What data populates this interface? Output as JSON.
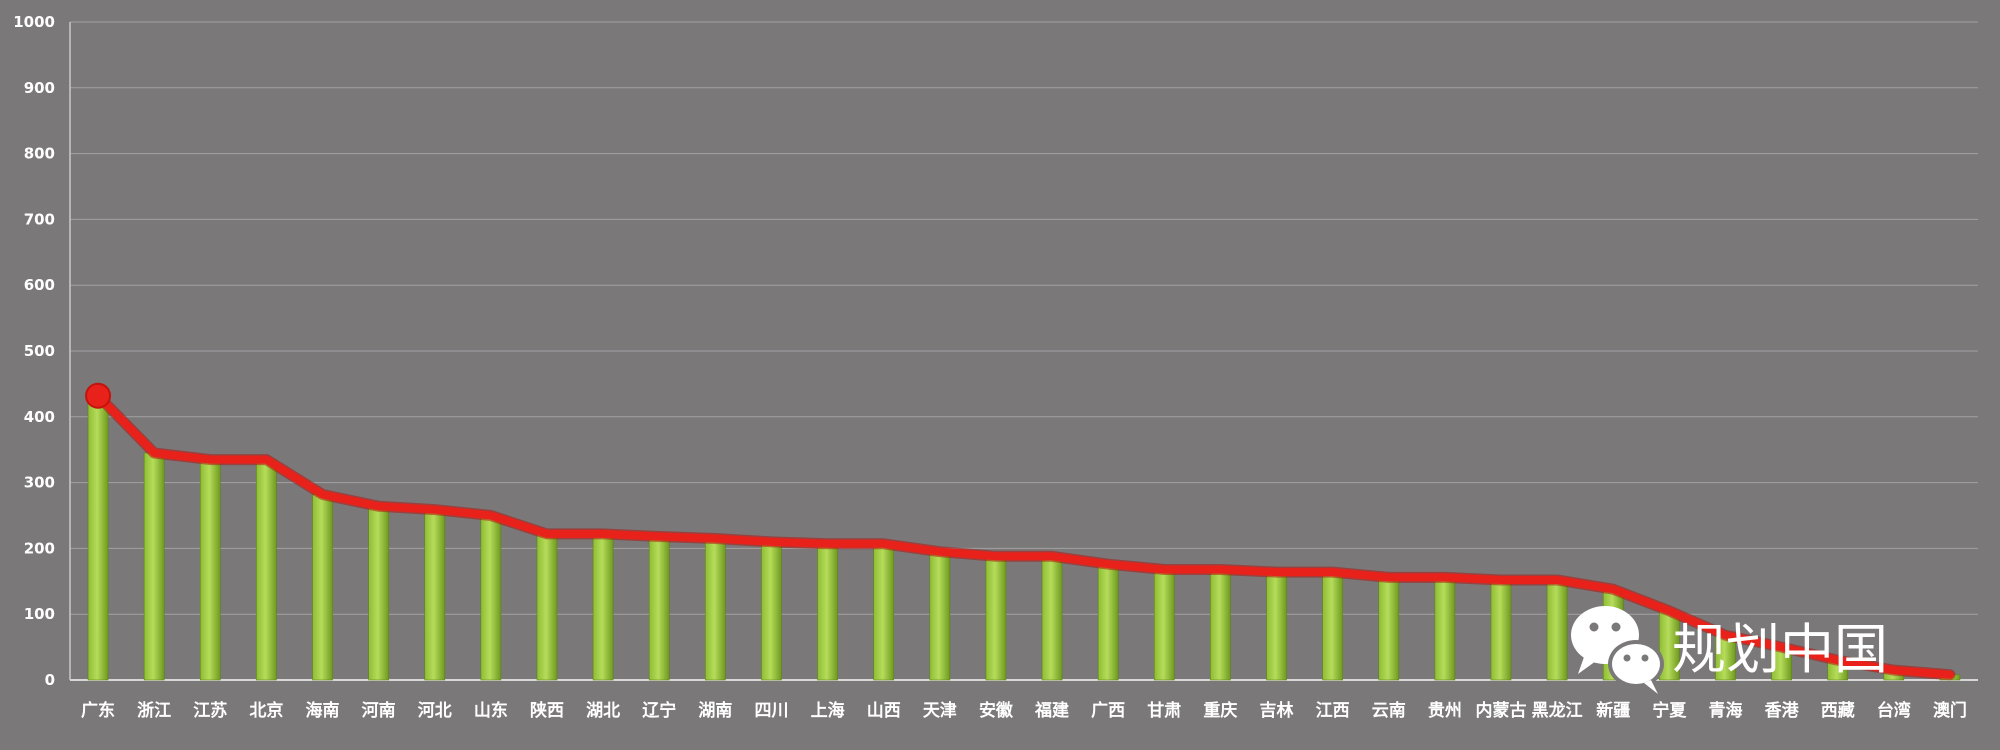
{
  "chart_data": {
    "type": "bar",
    "categories": [
      "广东",
      "浙江",
      "江苏",
      "北京",
      "海南",
      "河南",
      "河北",
      "山东",
      "陕西",
      "湖北",
      "辽宁",
      "湖南",
      "四川",
      "上海",
      "山西",
      "天津",
      "安徽",
      "福建",
      "广西",
      "甘肃",
      "重庆",
      "吉林",
      "江西",
      "云南",
      "贵州",
      "内蒙古",
      "黑龙江",
      "新疆",
      "宁夏",
      "青海",
      "香港",
      "西藏",
      "台湾",
      "澳门"
    ],
    "series": [
      {
        "chart_type": "bar",
        "values": [
          432,
          345,
          335,
          335,
          282,
          264,
          259,
          250,
          222,
          222,
          218,
          215,
          210,
          207,
          207,
          195,
          188,
          188,
          176,
          168,
          168,
          164,
          164,
          156,
          156,
          152,
          152,
          138,
          105,
          68,
          50,
          30,
          15,
          8
        ]
      },
      {
        "chart_type": "line",
        "values": [
          432,
          345,
          335,
          335,
          282,
          264,
          259,
          250,
          222,
          222,
          218,
          215,
          210,
          207,
          207,
          195,
          188,
          188,
          176,
          168,
          168,
          164,
          164,
          156,
          156,
          152,
          152,
          138,
          105,
          68,
          50,
          30,
          15,
          8
        ]
      }
    ],
    "ylim": [
      0,
      1000
    ],
    "yticks": [
      0,
      100,
      200,
      300,
      400,
      500,
      600,
      700,
      800,
      900,
      1000
    ],
    "grid": true,
    "legend": "none",
    "colors": {
      "background": "#7a7879",
      "bar_light": "#a8d24f",
      "bar_dark": "#6f9a1f",
      "line": "#e8221b",
      "grid": "#a3a1a2"
    }
  },
  "watermark": {
    "text": "规划中国",
    "icon": "wechat-logo-icon"
  }
}
